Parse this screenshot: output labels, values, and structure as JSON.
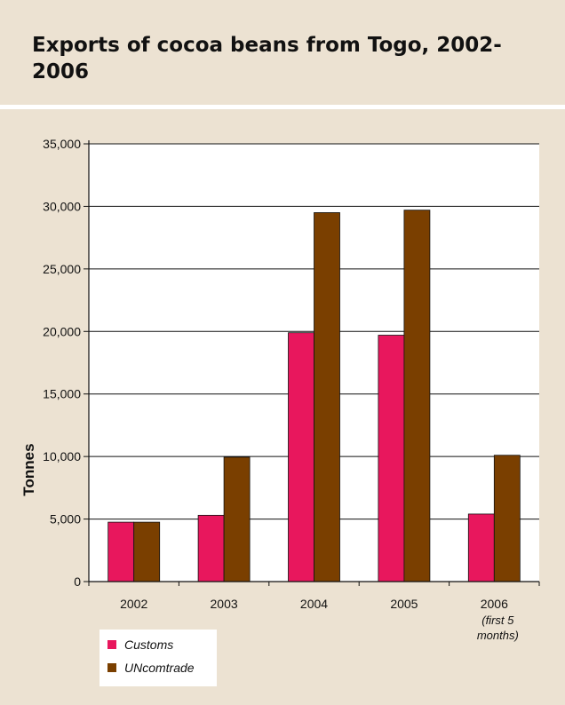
{
  "title": "Exports of cocoa beans from Togo, 2002-2006",
  "chart_data": {
    "type": "bar",
    "title": "Exports of cocoa beans from Togo, 2002-2006",
    "ylabel": "Tonnes",
    "xlabel": "",
    "categories": [
      "2002",
      "2003",
      "2004",
      "2005",
      "2006"
    ],
    "category_notes": [
      "",
      "",
      "",
      "",
      "(first 5 months)"
    ],
    "ylim": [
      0,
      35000
    ],
    "yticks": [
      0,
      5000,
      10000,
      15000,
      20000,
      25000,
      30000,
      35000
    ],
    "ytick_labels": [
      "0",
      "5,000",
      "10,000",
      "15,000",
      "20,000",
      "25,000",
      "30,000",
      "35,000"
    ],
    "grid": true,
    "legend_position": "bottom-left",
    "series": [
      {
        "name": "Customs",
        "color": "#e8175d",
        "values": [
          4750,
          5300,
          19900,
          19700,
          5400
        ]
      },
      {
        "name": "UNcomtrade",
        "color": "#7a3f00",
        "values": [
          4750,
          9950,
          29500,
          29700,
          10100
        ]
      }
    ]
  }
}
